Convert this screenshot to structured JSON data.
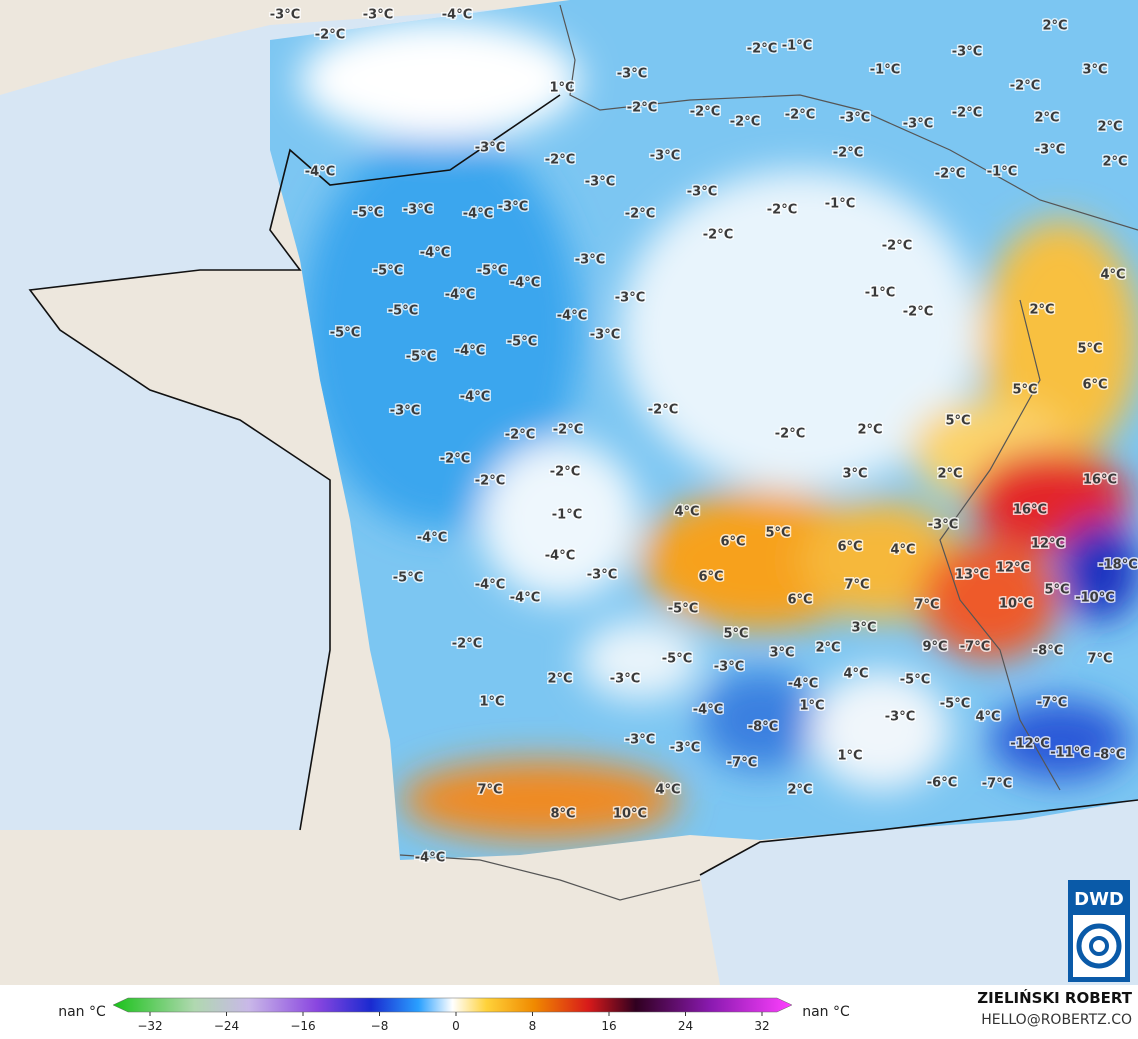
{
  "map": {
    "temperature_labels": [
      "-3°C",
      "-3°C",
      "-4°C",
      "-2°C",
      "1°C",
      "-3°C",
      "-2°C",
      "-1°C",
      "-3°C",
      "2°C",
      "3°C",
      "-1°C",
      "-2°C",
      "-2°C",
      "-2°C",
      "-2°C",
      "-2°C",
      "-3°C",
      "-3°C",
      "-2°C",
      "2°C",
      "2°C",
      "-3°C",
      "2°C",
      "-3°C",
      "-2°C",
      "-3°C",
      "-2°C",
      "-2°C",
      "-1°C",
      "-4°C",
      "-3°C",
      "-3°C",
      "-5°C",
      "-3°C",
      "-4°C",
      "-3°C",
      "-2°C",
      "-2°C",
      "-1°C",
      "-2°C",
      "-2°C",
      "4°C",
      "-4°C",
      "-3°C",
      "-5°C",
      "-5°C",
      "-4°C",
      "-4°C",
      "-3°C",
      "-1°C",
      "-2°C",
      "2°C",
      "-5°C",
      "-4°C",
      "-5°C",
      "-3°C",
      "-5°C",
      "-4°C",
      "-5°C",
      "5°C",
      "6°C",
      "5°C",
      "-4°C",
      "-3°C",
      "-2°C",
      "5°C",
      "-2°C",
      "-2°C",
      "-2°C",
      "2°C",
      "-2°C",
      "-2°C",
      "3°C",
      "2°C",
      "16°C",
      "-2°C",
      "4°C",
      "-1°C",
      "-3°C",
      "16°C",
      "6°C",
      "5°C",
      "-4°C",
      "6°C",
      "4°C",
      "12°C",
      "-4°C",
      "-18°C",
      "6°C",
      "-3°C",
      "7°C",
      "13°C",
      "12°C",
      "-5°C",
      "-4°C",
      "6°C",
      "-4°C",
      "7°C",
      "10°C",
      "5°C",
      "-10°C",
      "-5°C",
      "5°C",
      "3°C",
      "-2°C",
      "9°C",
      "-7°C",
      "3°C",
      "2°C",
      "-8°C",
      "7°C",
      "-5°C",
      "-3°C",
      "2°C",
      "-3°C",
      "4°C",
      "-4°C",
      "-5°C",
      "1°C",
      "-5°C",
      "1°C",
      "-4°C",
      "4°C",
      "-3°C",
      "-8°C",
      "-7°C",
      "-3°C",
      "-3°C",
      "1°C",
      "-12°C",
      "-11°C",
      "-8°C",
      "-7°C",
      "7°C",
      "4°C",
      "2°C",
      "-6°C",
      "-7°C",
      "8°C",
      "10°C",
      "-4°C"
    ]
  },
  "logo": "DWD",
  "legend": {
    "nan_left": "nan °C",
    "nan_right": "nan °C",
    "ticks": [
      {
        "value": -32,
        "label": "−32"
      },
      {
        "value": -24,
        "label": "−24"
      },
      {
        "value": -16,
        "label": "−16"
      },
      {
        "value": -8,
        "label": "−8"
      },
      0,
      8,
      16,
      24,
      32
    ],
    "range": [
      -32,
      32
    ]
  },
  "credit": {
    "name": "ZIELIŃSKI ROBERT",
    "email": "HELLO@ROBERTZ.CO"
  }
}
